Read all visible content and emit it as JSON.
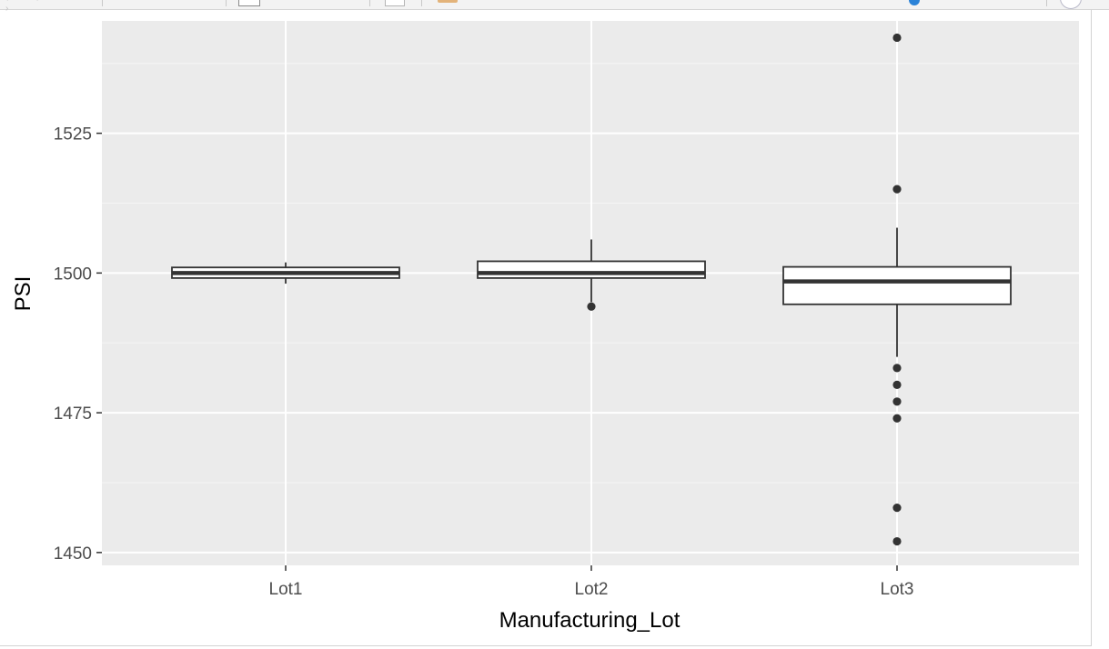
{
  "chart_data": {
    "type": "boxplot",
    "title": "",
    "xlabel": "Manufacturing_Lot",
    "ylabel": "PSI",
    "categories": [
      "Lot1",
      "Lot2",
      "Lot3"
    ],
    "ylim": [
      1447.7,
      1545.1
    ],
    "yticks": [
      1450,
      1475,
      1500,
      1525
    ],
    "ytick_labels": [
      "1450",
      "1475",
      "1500",
      "1525"
    ],
    "boxes": [
      {
        "name": "Lot1",
        "whisker_low": 1498.1,
        "q1": 1499.1,
        "median": 1500.0,
        "q3": 1501.0,
        "whisker_high": 1501.9,
        "outliers": []
      },
      {
        "name": "Lot2",
        "whisker_low": 1494.8,
        "q1": 1499.1,
        "median": 1500.0,
        "q3": 1502.1,
        "whisker_high": 1506.0,
        "outliers": [
          1494.0
        ]
      },
      {
        "name": "Lot3",
        "whisker_low": 1485.0,
        "q1": 1494.4,
        "median": 1498.5,
        "q3": 1501.1,
        "whisker_high": 1508.1,
        "outliers": [
          1542.1,
          1515.0,
          1483.0,
          1480.0,
          1477.0,
          1474.0,
          1458.0,
          1452.0
        ]
      }
    ],
    "grid": true,
    "legend": "none",
    "colors": {
      "panel_background": "#ebebeb",
      "grid_major": "#ffffff",
      "grid_minor": "#f5f5f5",
      "box_fill": "#ffffff",
      "box_line": "#333333",
      "tick_label": "#4d4d4d",
      "axis_title": "#000000"
    }
  }
}
